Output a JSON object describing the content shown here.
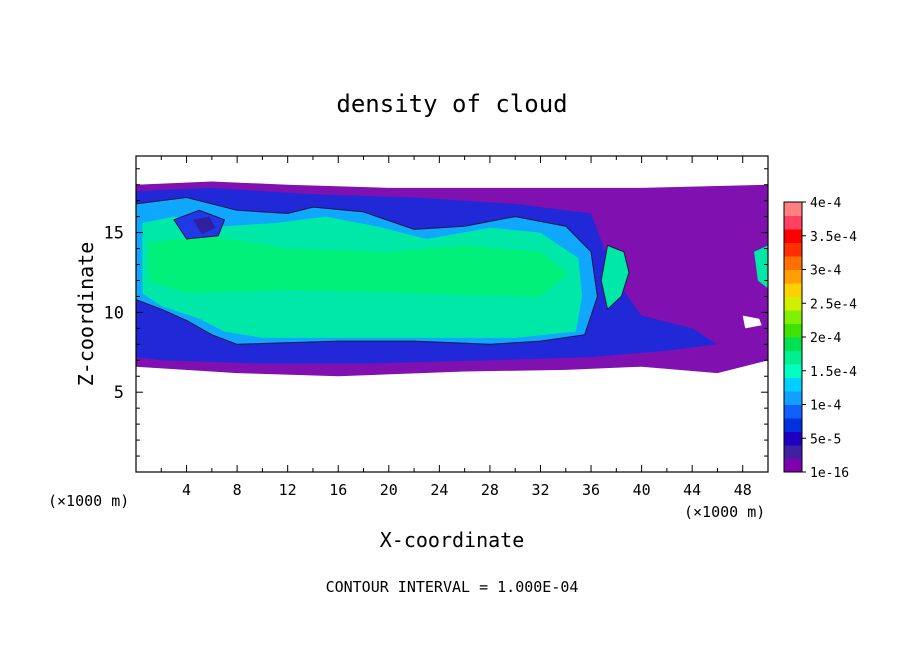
{
  "chart_data": {
    "type": "heatmap",
    "title": "density of cloud",
    "xlabel": "X-coordinate",
    "ylabel": "Z-coordinate",
    "x_unit_left": "(×1000 m)",
    "x_unit_right": "(×1000 m)",
    "xlim": [
      0,
      50
    ],
    "ylim": [
      0,
      19.8
    ],
    "x_ticks": [
      4,
      8,
      12,
      16,
      20,
      24,
      28,
      32,
      36,
      40,
      44,
      48
    ],
    "y_ticks": [
      5,
      10,
      15
    ],
    "footer": "CONTOUR INTERVAL = 1.000E-04",
    "colorbar": {
      "labels": [
        "4e-4",
        "3.5e-4",
        "3e-4",
        "2.5e-4",
        "2e-4",
        "1.5e-4",
        "1e-4",
        "5e-5",
        "1e-16"
      ],
      "label_values": [
        0.0004,
        0.00035,
        0.0003,
        0.00025,
        0.0002,
        0.00015,
        0.0001,
        5e-05,
        1e-16
      ],
      "colors": [
        "#8000b0",
        "#4020a0",
        "#2000c0",
        "#0030e0",
        "#1060ff",
        "#10a0ff",
        "#00d0ff",
        "#00ffc0",
        "#00f090",
        "#00e050",
        "#40e000",
        "#80f000",
        "#d0f000",
        "#ffd000",
        "#ffa000",
        "#ff7000",
        "#ff3000",
        "#ff0000",
        "#ff4060",
        "#ff8080"
      ]
    },
    "contour_levels": [
      0.0001
    ],
    "regions": [
      {
        "kind": "cloud_envelope_min",
        "outline": [
          [
            0,
            18
          ],
          [
            6,
            18.2
          ],
          [
            12,
            18
          ],
          [
            20,
            17.8
          ],
          [
            30,
            17.8
          ],
          [
            40,
            17.8
          ],
          [
            50,
            18
          ],
          [
            50,
            7
          ],
          [
            46,
            6.2
          ],
          [
            40,
            6.6
          ],
          [
            34,
            6.4
          ],
          [
            26,
            6.3
          ],
          [
            16,
            6.0
          ],
          [
            8,
            6.2
          ],
          [
            0,
            6.6
          ]
        ]
      },
      {
        "kind": "level_5e-5",
        "outline": [
          [
            0,
            17.6
          ],
          [
            6,
            17.8
          ],
          [
            14,
            17.4
          ],
          [
            22,
            17.2
          ],
          [
            30,
            16.8
          ],
          [
            36,
            16.2
          ],
          [
            38,
            12
          ],
          [
            40,
            9.8
          ],
          [
            44,
            9.0
          ],
          [
            46,
            8.0
          ],
          [
            42,
            7.6
          ],
          [
            36,
            7.2
          ],
          [
            28,
            7.0
          ],
          [
            18,
            6.8
          ],
          [
            10,
            6.8
          ],
          [
            2,
            7.0
          ],
          [
            0,
            7.2
          ]
        ]
      },
      {
        "kind": "level_1e-4",
        "outline": [
          [
            0,
            16.8
          ],
          [
            4,
            17.2
          ],
          [
            8,
            16.4
          ],
          [
            12,
            16.2
          ],
          [
            14,
            16.6
          ],
          [
            18,
            16.3
          ],
          [
            22,
            15.2
          ],
          [
            26,
            15.4
          ],
          [
            30,
            16.0
          ],
          [
            34,
            15.4
          ],
          [
            36,
            13.8
          ],
          [
            36.5,
            11
          ],
          [
            35.5,
            8.6
          ],
          [
            32,
            8.2
          ],
          [
            28,
            8.0
          ],
          [
            22,
            8.2
          ],
          [
            16,
            8.2
          ],
          [
            8,
            8.0
          ],
          [
            6,
            8.6
          ],
          [
            4,
            9.5
          ],
          [
            2,
            10.2
          ],
          [
            0,
            10.8
          ]
        ]
      },
      {
        "kind": "level_1.5e-4",
        "outline": [
          [
            0.5,
            15.6
          ],
          [
            3,
            16.0
          ],
          [
            7,
            15.4
          ],
          [
            11,
            15.6
          ],
          [
            15,
            16.0
          ],
          [
            19,
            15.4
          ],
          [
            23,
            14.6
          ],
          [
            28,
            15.3
          ],
          [
            32,
            15.0
          ],
          [
            35,
            13.4
          ],
          [
            35.3,
            11
          ],
          [
            34.8,
            8.8
          ],
          [
            30,
            8.4
          ],
          [
            24,
            8.4
          ],
          [
            18,
            8.4
          ],
          [
            10,
            8.4
          ],
          [
            7,
            8.8
          ],
          [
            5,
            9.6
          ],
          [
            2,
            10.4
          ],
          [
            0.5,
            11.2
          ]
        ]
      },
      {
        "kind": "level_1.5e-4_right_column",
        "outline": [
          [
            37.3,
            14.2
          ],
          [
            38.6,
            13.8
          ],
          [
            39.0,
            12.5
          ],
          [
            38.4,
            11.0
          ],
          [
            37.3,
            10.2
          ],
          [
            36.8,
            12.0
          ]
        ]
      },
      {
        "kind": "level_1.5e-4_edge_patch",
        "outline": [
          [
            48.9,
            13.8
          ],
          [
            50,
            14.2
          ],
          [
            50,
            11.5
          ],
          [
            49.2,
            12.0
          ]
        ]
      },
      {
        "kind": "level_2e-4_core",
        "outline": [
          [
            1,
            14.4
          ],
          [
            6,
            14.8
          ],
          [
            12,
            14.0
          ],
          [
            20,
            13.8
          ],
          [
            26,
            14.2
          ],
          [
            32,
            13.8
          ],
          [
            34.2,
            12.4
          ],
          [
            32,
            11.0
          ],
          [
            22,
            11.2
          ],
          [
            12,
            11.4
          ],
          [
            4,
            11.2
          ],
          [
            1,
            12.0
          ]
        ]
      },
      {
        "kind": "vortex_low",
        "outline": [
          [
            3,
            15.8
          ],
          [
            5,
            16.4
          ],
          [
            7,
            15.8
          ],
          [
            6.5,
            14.8
          ],
          [
            4,
            14.6
          ]
        ]
      },
      {
        "kind": "vortex_inner",
        "outline": [
          [
            4.5,
            15.8
          ],
          [
            5.8,
            16.0
          ],
          [
            6.3,
            15.3
          ],
          [
            5.2,
            14.9
          ]
        ]
      },
      {
        "kind": "cloud_free_patch",
        "outline": [
          [
            48,
            9.8
          ],
          [
            49.3,
            9.6
          ],
          [
            49.5,
            9.2
          ],
          [
            48.2,
            9.0
          ]
        ]
      }
    ]
  }
}
